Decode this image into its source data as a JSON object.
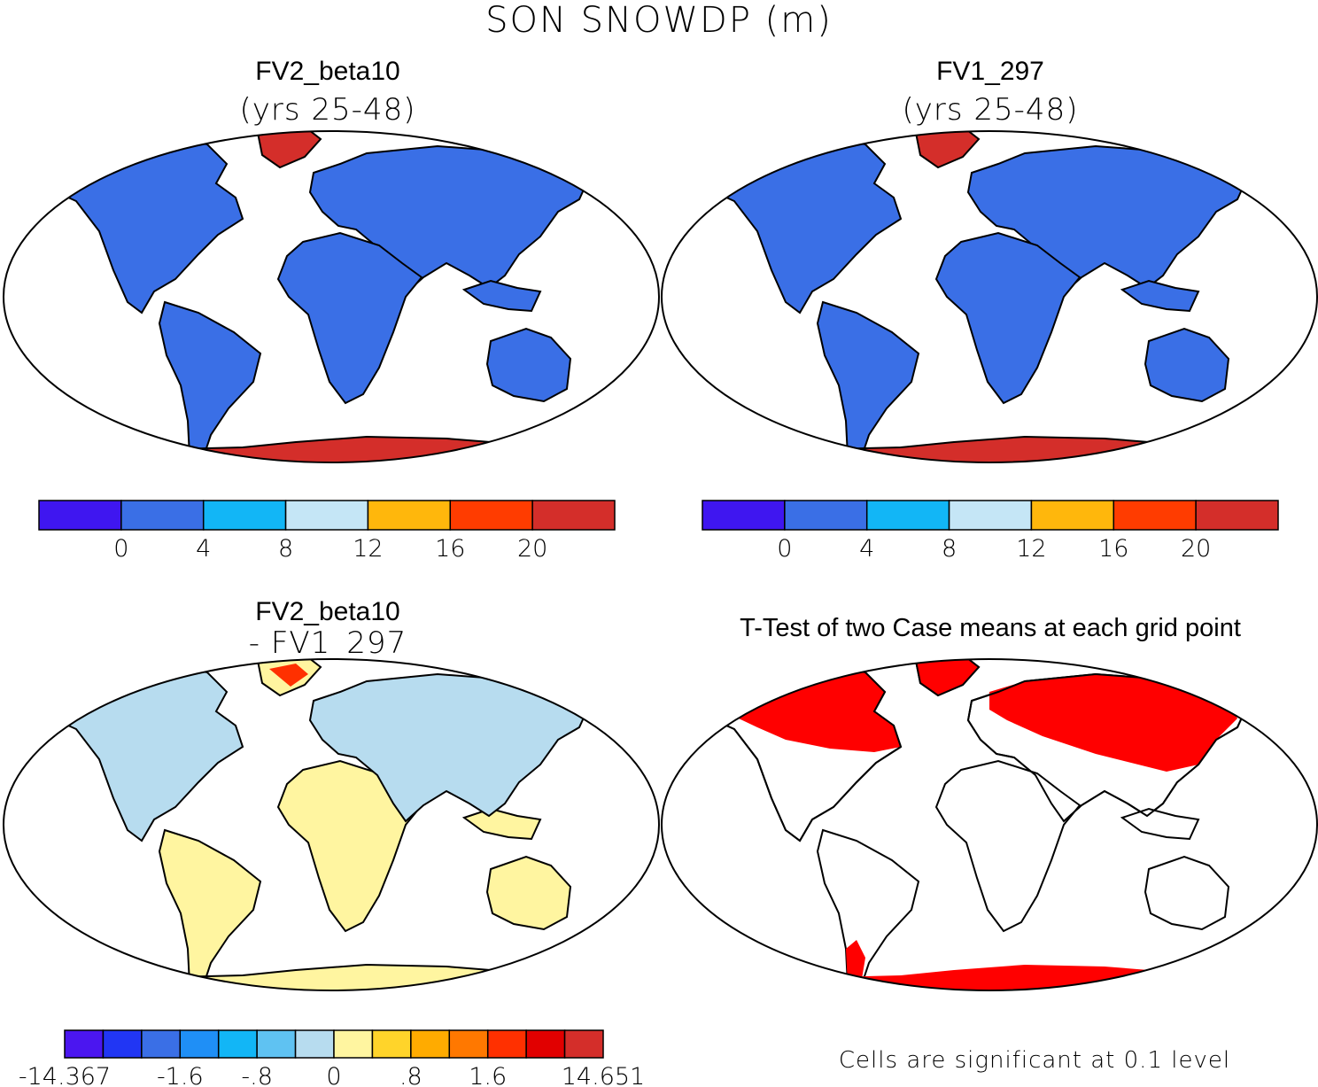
{
  "figure_title": "SON SNOWDP (m)",
  "colors": {
    "land_snow_low": "#3a6fe6",
    "ice_snow_high": "#d42e2a",
    "diff_small": "#fff5a0",
    "diff_neg": "#b7dcef",
    "significant": "#ff0000",
    "coast": "#000000"
  },
  "panels": [
    {
      "id": "fv2",
      "title": "FV2_beta10",
      "subtitle": "(yrs 25-48)",
      "colorbar": {
        "colors": [
          "#3f16f0",
          "#3a6fe6",
          "#12b6f6",
          "#c5e6f6",
          "#ffb70c",
          "#ff3c00",
          "#d42e2a"
        ],
        "tick_labels": [
          "0",
          "4",
          "8",
          "12",
          "16",
          "20"
        ]
      }
    },
    {
      "id": "fv1",
      "title": "FV1_297",
      "subtitle": "(yrs 25-48)",
      "colorbar": {
        "colors": [
          "#3f16f0",
          "#3a6fe6",
          "#12b6f6",
          "#c5e6f6",
          "#ffb70c",
          "#ff3c00",
          "#d42e2a"
        ],
        "tick_labels": [
          "0",
          "4",
          "8",
          "12",
          "16",
          "20"
        ]
      }
    },
    {
      "id": "diff",
      "title": "FV2_beta10",
      "subtitle": "- FV1_297",
      "colorbar": {
        "colors": [
          "#4b16f0",
          "#2136f4",
          "#3a6fe6",
          "#1f8ff6",
          "#12b6f6",
          "#5fc2f2",
          "#b7dcef",
          "#fff5a0",
          "#ffd42a",
          "#ffab00",
          "#ff7800",
          "#ff3000",
          "#e10000",
          "#d42e2a"
        ],
        "tick_labels": [
          "-14.367",
          "-1.6",
          "-.8",
          "0",
          ".8",
          "1.6",
          "14.651"
        ]
      }
    },
    {
      "id": "ttest",
      "title": "T-Test of two Case means at each grid point",
      "footnote": "Cells are significant at 0.1 level"
    }
  ]
}
